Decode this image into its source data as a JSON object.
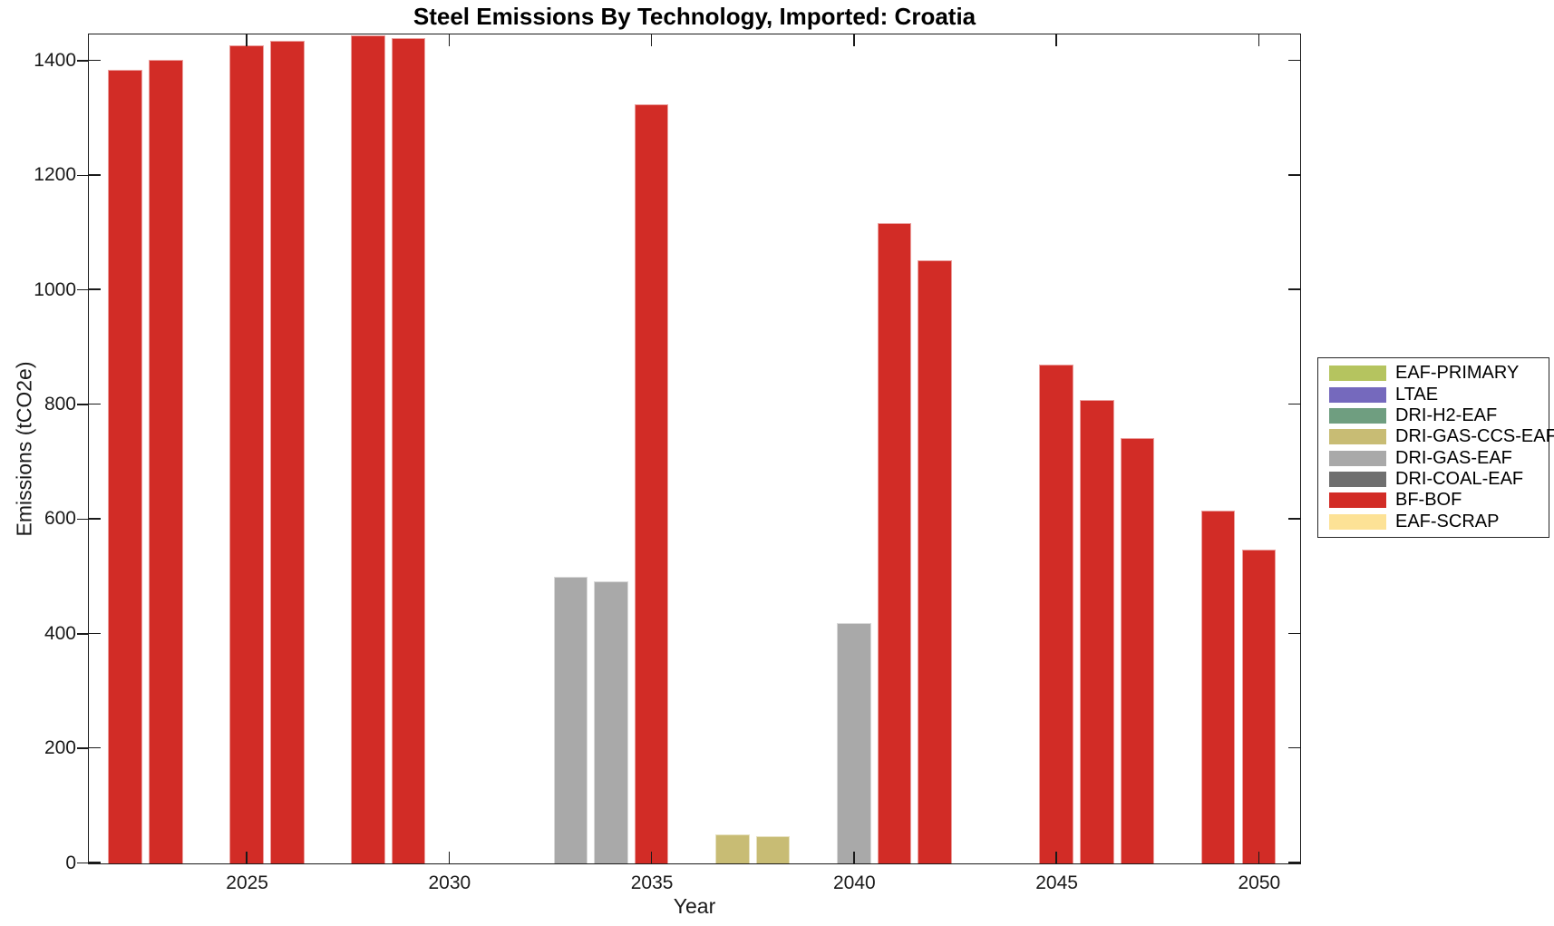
{
  "figure": {
    "title": "Steel Emissions By Technology, Imported: Croatia",
    "xlabel": "Year",
    "ylabel": "Emissions (tCO2e)"
  },
  "chart_data": {
    "type": "bar",
    "title": "Steel Emissions By Technology, Imported: Croatia",
    "xlabel": "Year",
    "ylabel": "Emissions (tCO2e)",
    "xlim": [
      2021.1,
      2051.0
    ],
    "ylim": [
      0,
      1445
    ],
    "x_ticks": [
      2025,
      2030,
      2035,
      2040,
      2045,
      2050
    ],
    "y_ticks": [
      0,
      200,
      400,
      600,
      800,
      1000,
      1200,
      1400
    ],
    "grid": false,
    "legend_position": "outside-right",
    "bar_width_years": 0.84,
    "legend": [
      {
        "label": "EAF-PRIMARY",
        "color": "#B5C45F"
      },
      {
        "label": "LTAE",
        "color": "#7569BD"
      },
      {
        "label": "DRI-H2-EAF",
        "color": "#6F9E80"
      },
      {
        "label": "DRI-GAS-CCS-EAF",
        "color": "#C8BC74"
      },
      {
        "label": "DRI-GAS-EAF",
        "color": "#A9A9A9"
      },
      {
        "label": "DRI-COAL-EAF",
        "color": "#6F6F6F"
      },
      {
        "label": "BF-BOF",
        "color": "#D22C26"
      },
      {
        "label": "EAF-SCRAP",
        "color": "#FDE296"
      }
    ],
    "bars": [
      {
        "year": 2022,
        "technology": "BF-BOF",
        "value": 1385
      },
      {
        "year": 2023,
        "technology": "BF-BOF",
        "value": 1403
      },
      {
        "year": 2025,
        "technology": "BF-BOF",
        "value": 1428
      },
      {
        "year": 2026,
        "technology": "BF-BOF",
        "value": 1436
      },
      {
        "year": 2028,
        "technology": "BF-BOF",
        "value": 1445
      },
      {
        "year": 2029,
        "technology": "BF-BOF",
        "value": 1441
      },
      {
        "year": 2033,
        "technology": "DRI-GAS-EAF",
        "value": 500
      },
      {
        "year": 2034,
        "technology": "DRI-GAS-EAF",
        "value": 492
      },
      {
        "year": 2035,
        "technology": "BF-BOF",
        "value": 1325
      },
      {
        "year": 2037,
        "technology": "DRI-GAS-CCS-EAF",
        "value": 50
      },
      {
        "year": 2038,
        "technology": "DRI-GAS-CCS-EAF",
        "value": 47
      },
      {
        "year": 2040,
        "technology": "DRI-GAS-EAF",
        "value": 420
      },
      {
        "year": 2041,
        "technology": "BF-BOF",
        "value": 1117
      },
      {
        "year": 2042,
        "technology": "BF-BOF",
        "value": 1052
      },
      {
        "year": 2045,
        "technology": "BF-BOF",
        "value": 871
      },
      {
        "year": 2046,
        "technology": "BF-BOF",
        "value": 808
      },
      {
        "year": 2047,
        "technology": "BF-BOF",
        "value": 743
      },
      {
        "year": 2049,
        "technology": "BF-BOF",
        "value": 615
      },
      {
        "year": 2050,
        "technology": "BF-BOF",
        "value": 548
      }
    ]
  }
}
